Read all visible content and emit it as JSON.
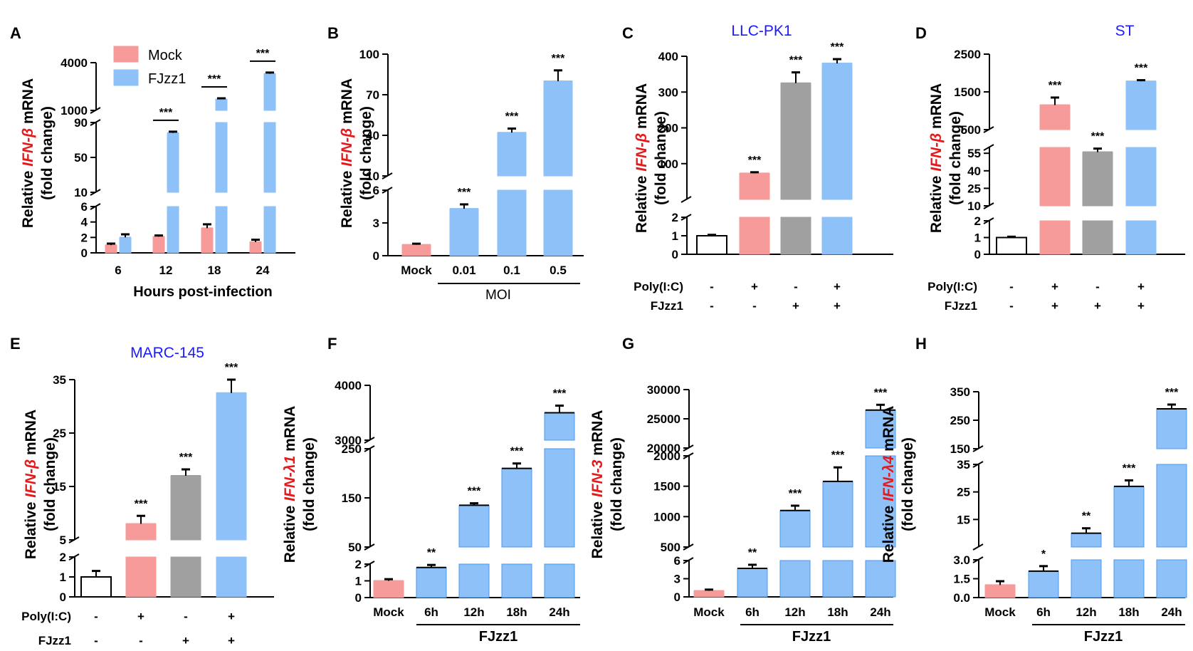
{
  "chart_data": [
    {
      "id": "A",
      "type": "bar",
      "categories": [
        "6",
        "12",
        "18",
        "24"
      ],
      "xlabel": "Hours post-infection",
      "ylabel": {
        "prefix": "Relative ",
        "gene": "IFN-β",
        "suffix": " mRNA",
        "line2": "(fold change)"
      },
      "legend": [
        "Mock",
        "FJzz1"
      ],
      "series": [
        {
          "name": "Mock",
          "color": "#f79a9a",
          "values": [
            1.0,
            2.1,
            3.2,
            1.4
          ],
          "errors": [
            0.2,
            0.15,
            0.5,
            0.3
          ]
        },
        {
          "name": "FJzz1",
          "color": "#8ec1f7",
          "values": [
            2.0,
            78,
            1700,
            3300
          ],
          "errors": [
            0.4,
            1.5,
            60,
            80
          ]
        }
      ],
      "significance": [
        "",
        "***",
        "***",
        "***"
      ],
      "y_segments": [
        {
          "range": [
            0,
            6
          ],
          "ticks": [
            0,
            2,
            4,
            6
          ]
        },
        {
          "range": [
            10,
            90
          ],
          "ticks": [
            10,
            50,
            90
          ]
        },
        {
          "range": [
            1000,
            4000
          ],
          "ticks": [
            1000,
            4000
          ]
        }
      ]
    },
    {
      "id": "B",
      "type": "bar",
      "categories": [
        "Mock",
        "0.01",
        "0.1",
        "0.5"
      ],
      "group_label": "MOI",
      "ylabel": {
        "prefix": "Relative ",
        "gene": "IFN-β",
        "suffix": " mRNA",
        "line2": "(fold change)"
      },
      "values": [
        1.0,
        4.3,
        42,
        80
      ],
      "errors": [
        0.1,
        0.4,
        3,
        8
      ],
      "colors": [
        "#f79a9a",
        "#8ec1f7",
        "#8ec1f7",
        "#8ec1f7"
      ],
      "significance": [
        "",
        "***",
        "***",
        "***"
      ],
      "y_segments": [
        {
          "range": [
            0,
            6
          ],
          "ticks": [
            0,
            3,
            6
          ]
        },
        {
          "range": [
            10,
            100
          ],
          "ticks": [
            10,
            40,
            70,
            100
          ]
        }
      ]
    },
    {
      "id": "C",
      "type": "bar",
      "title": "LLC-PK1",
      "title_color": "#1a1aff",
      "ylabel": {
        "prefix": "Relative ",
        "gene": "IFN-β",
        "suffix": " mRNA",
        "line2": "(fold change)"
      },
      "values": [
        1.0,
        73,
        325,
        380
      ],
      "errors": [
        0.05,
        3,
        30,
        12
      ],
      "colors": [
        "#ffffff",
        "#f79a9a",
        "#a0a0a0",
        "#8ec1f7"
      ],
      "significance": [
        "",
        "***",
        "***",
        "***"
      ],
      "conditions": [
        {
          "label": "Poly(I:C)",
          "signs": [
            "-",
            "+",
            "-",
            "+"
          ]
        },
        {
          "label": "FJzz1",
          "signs": [
            "-",
            "-",
            "+",
            "+"
          ]
        }
      ],
      "y_segments": [
        {
          "range": [
            0,
            2
          ],
          "ticks": [
            0,
            1,
            2
          ]
        },
        {
          "range": [
            0,
            400
          ],
          "ticks": [
            100,
            200,
            300,
            400
          ]
        }
      ]
    },
    {
      "id": "D",
      "type": "bar",
      "title": "ST",
      "title_color": "#1a1aff",
      "ylabel": {
        "prefix": "Relative ",
        "gene": "IFN-β",
        "suffix": " mRNA",
        "line2": "(fold change)"
      },
      "values": [
        1.0,
        1150,
        56,
        1780
      ],
      "errors": [
        0.05,
        200,
        3,
        30
      ],
      "colors": [
        "#ffffff",
        "#f79a9a",
        "#a0a0a0",
        "#8ec1f7"
      ],
      "significance": [
        "",
        "***",
        "***",
        "***"
      ],
      "conditions": [
        {
          "label": "Poly(I:C)",
          "signs": [
            "-",
            "+",
            "-",
            "+"
          ]
        },
        {
          "label": "FJzz1",
          "signs": [
            "-",
            "+",
            "+",
            "+"
          ]
        }
      ],
      "y_segments": [
        {
          "range": [
            0,
            2
          ],
          "ticks": [
            0,
            1,
            2
          ]
        },
        {
          "range": [
            10,
            60
          ],
          "ticks": [
            10,
            25,
            40,
            55
          ]
        },
        {
          "range": [
            500,
            2500
          ],
          "ticks": [
            500,
            1500,
            2500
          ]
        }
      ]
    },
    {
      "id": "E",
      "type": "bar",
      "title": "MARC-145",
      "title_color": "#1a1aff",
      "ylabel": {
        "prefix": "Relative ",
        "gene": "IFN-β",
        "suffix": " mRNA",
        "line2": "(fold change)"
      },
      "values": [
        1.0,
        8,
        17,
        32.5
      ],
      "errors": [
        0.3,
        1.5,
        1.2,
        3
      ],
      "colors": [
        "#ffffff",
        "#f79a9a",
        "#a0a0a0",
        "#8ec1f7"
      ],
      "significance": [
        "",
        "***",
        "***",
        "***"
      ],
      "conditions": [
        {
          "label": "Poly(I:C)",
          "signs": [
            "-",
            "+",
            "-",
            "+"
          ]
        },
        {
          "label": "FJzz1",
          "signs": [
            "-",
            "-",
            "+",
            "+"
          ]
        }
      ],
      "y_segments": [
        {
          "range": [
            0,
            2
          ],
          "ticks": [
            0,
            1,
            2
          ]
        },
        {
          "range": [
            5,
            35
          ],
          "ticks": [
            5,
            15,
            25,
            35
          ]
        }
      ]
    },
    {
      "id": "F",
      "type": "bar",
      "categories": [
        "Mock",
        "6h",
        "12h",
        "18h",
        "24h"
      ],
      "group_label": "FJzz1",
      "ylabel": {
        "prefix": "Relative ",
        "gene": "IFN-λ1",
        "suffix": " mRNA",
        "line2": "(fold change)"
      },
      "values": [
        1.0,
        1.8,
        135,
        210,
        3500
      ],
      "errors": [
        0.1,
        0.15,
        4,
        10,
        130
      ],
      "colors": [
        "#f79a9a",
        "#8ec1f7",
        "#8ec1f7",
        "#8ec1f7",
        "#8ec1f7"
      ],
      "significance": [
        "",
        "**",
        "***",
        "***",
        "***"
      ],
      "y_segments": [
        {
          "range": [
            0,
            2
          ],
          "ticks": [
            0,
            1,
            2
          ]
        },
        {
          "range": [
            50,
            250
          ],
          "ticks": [
            50,
            150,
            250
          ]
        },
        {
          "range": [
            3000,
            4000
          ],
          "ticks": [
            3000,
            4000
          ]
        }
      ]
    },
    {
      "id": "G",
      "type": "bar",
      "categories": [
        "Mock",
        "6h",
        "12h",
        "18h",
        "24h"
      ],
      "group_label": "FJzz1",
      "ylabel": {
        "prefix": "Relative ",
        "gene": "IFN-3",
        "suffix": " mRNA",
        "line2": "(fold change)"
      },
      "values": [
        1.0,
        4.7,
        1100,
        1580,
        26500
      ],
      "errors": [
        0.2,
        0.6,
        80,
        230,
        900
      ],
      "colors": [
        "#f79a9a",
        "#8ec1f7",
        "#8ec1f7",
        "#8ec1f7",
        "#8ec1f7"
      ],
      "significance": [
        "",
        "**",
        "***",
        "***",
        "***"
      ],
      "y_segments": [
        {
          "range": [
            0,
            6
          ],
          "ticks": [
            0,
            3,
            6
          ]
        },
        {
          "range": [
            500,
            2000
          ],
          "ticks": [
            500,
            1000,
            1500,
            2000
          ]
        },
        {
          "range": [
            20000,
            30000
          ],
          "ticks": [
            20000,
            25000,
            30000
          ]
        }
      ]
    },
    {
      "id": "H",
      "type": "bar",
      "categories": [
        "Mock",
        "6h",
        "12h",
        "18h",
        "24h"
      ],
      "group_label": "FJzz1",
      "ylabel": {
        "prefix": "Relative ",
        "gene": "IFN-λ4",
        "suffix": " mRNA",
        "line2": "(fold change)"
      },
      "values": [
        1.0,
        2.1,
        10,
        27,
        290
      ],
      "errors": [
        0.3,
        0.4,
        1.8,
        2.2,
        15
      ],
      "colors": [
        "#f79a9a",
        "#8ec1f7",
        "#8ec1f7",
        "#8ec1f7",
        "#8ec1f7"
      ],
      "significance": [
        "",
        "*",
        "**",
        "***",
        "***"
      ],
      "y_segments": [
        {
          "range": [
            0,
            3
          ],
          "ticks": [
            0.0,
            1.5,
            3.0
          ]
        },
        {
          "range": [
            5,
            35
          ],
          "ticks": [
            15,
            25,
            35
          ]
        },
        {
          "range": [
            150,
            350
          ],
          "ticks": [
            150,
            250,
            350
          ]
        }
      ]
    }
  ]
}
